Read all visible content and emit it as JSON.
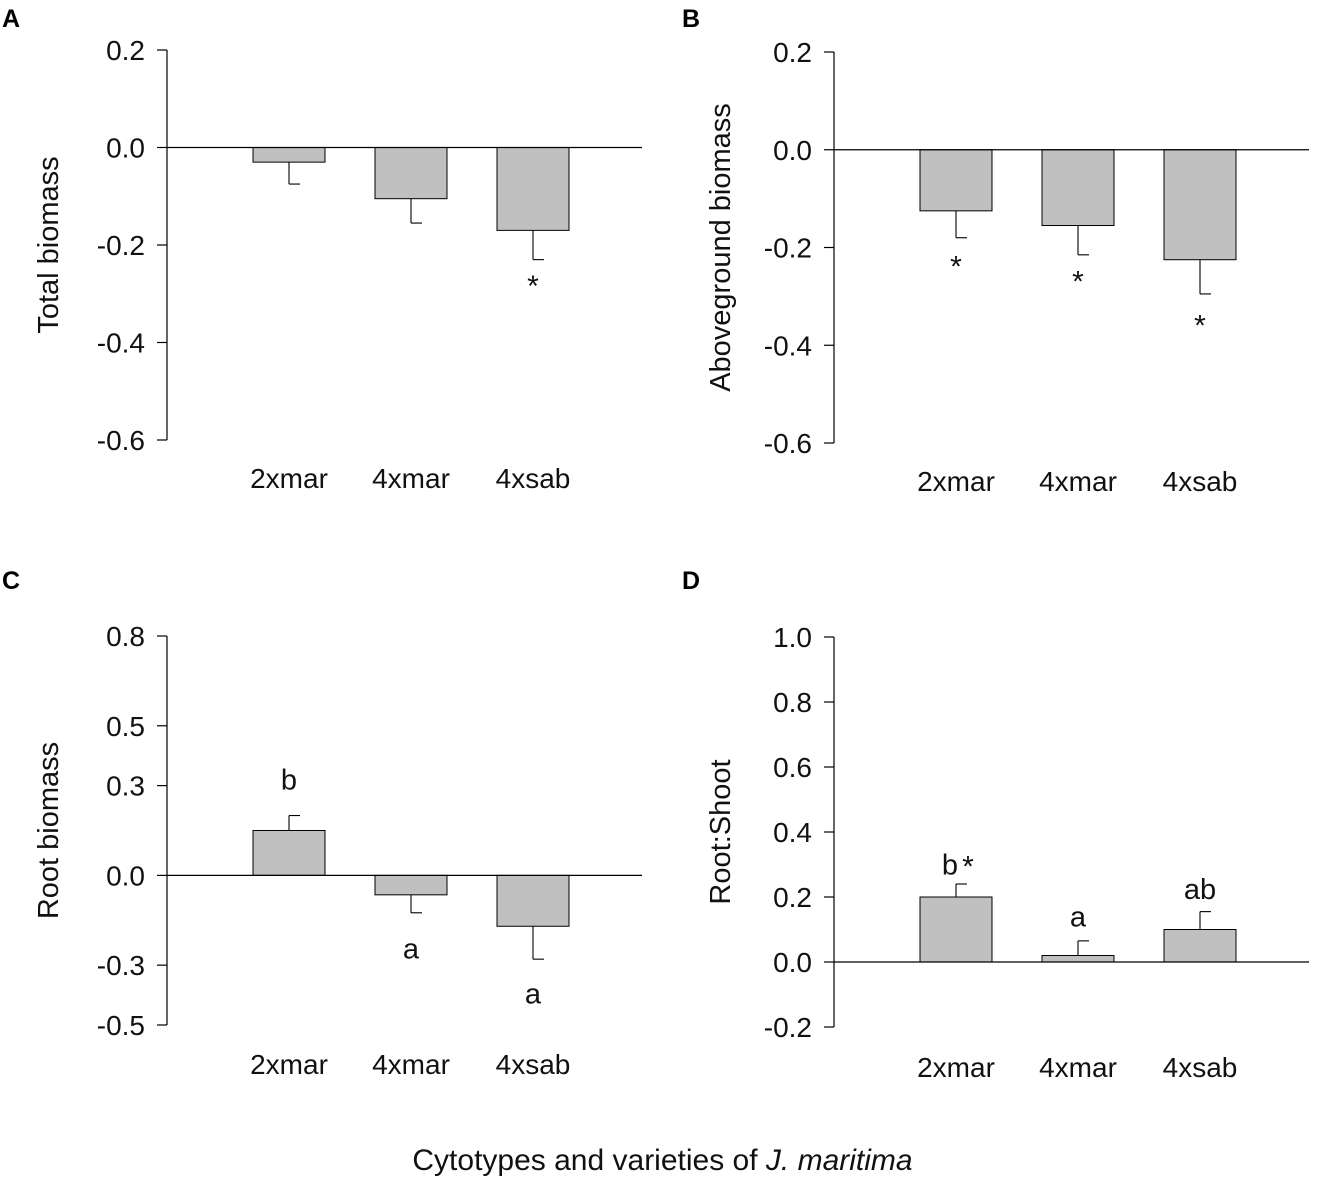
{
  "figure": {
    "caption_prefix": "Cytotypes and varieties of ",
    "caption_species": "J. maritima",
    "bar_color": "#c0c0c0",
    "axis_color": "#000000"
  },
  "chart_data": [
    {
      "panel": "A",
      "type": "bar",
      "ylabel": "Total biomass",
      "categories": [
        "2xmar",
        "4xmar",
        "4xsab"
      ],
      "values": [
        -0.03,
        -0.105,
        -0.17
      ],
      "errors": [
        0.045,
        0.05,
        0.06
      ],
      "error_direction": "down",
      "ylim": [
        -0.6,
        0.2
      ],
      "yticks": [
        0.2,
        0.0,
        -0.2,
        -0.4,
        -0.6
      ],
      "ytick_labels": [
        "0.2",
        "0.0",
        "-0.2",
        "-0.4",
        "-0.6"
      ],
      "annotations": [
        {
          "category": "4xsab",
          "text": "*",
          "value": -0.28
        }
      ]
    },
    {
      "panel": "B",
      "type": "bar",
      "ylabel": "Aboveground biomass",
      "categories": [
        "2xmar",
        "4xmar",
        "4xsab"
      ],
      "values": [
        -0.125,
        -0.155,
        -0.225
      ],
      "errors": [
        0.055,
        0.06,
        0.07
      ],
      "error_direction": "down",
      "ylim": [
        -0.6,
        0.2
      ],
      "yticks": [
        0.2,
        0.0,
        -0.2,
        -0.4,
        -0.6
      ],
      "ytick_labels": [
        "0.2",
        "0.0",
        "-0.2",
        "-0.4",
        "-0.6"
      ],
      "annotations": [
        {
          "category": "2xmar",
          "text": "*",
          "value": -0.235
        },
        {
          "category": "4xmar",
          "text": "*",
          "value": -0.265
        },
        {
          "category": "4xsab",
          "text": "*",
          "value": -0.355
        }
      ]
    },
    {
      "panel": "C",
      "type": "bar",
      "ylabel": "Root biomass",
      "categories": [
        "2xmar",
        "4xmar",
        "4xsab"
      ],
      "values": [
        0.15,
        -0.065,
        -0.17
      ],
      "errors": [
        0.05,
        0.06,
        0.11
      ],
      "error_direction": "outward",
      "ylim": [
        -0.5,
        0.8
      ],
      "yticks": [
        0.8,
        0.5,
        0.3,
        0.0,
        -0.3,
        -0.5
      ],
      "ytick_labels": [
        "0.8",
        "0.5",
        "0.3",
        "0.0",
        "-0.3",
        "-0.5"
      ],
      "annotations": [
        {
          "category": "2xmar",
          "text": "b",
          "value": 0.32
        },
        {
          "category": "4xmar",
          "text": "a",
          "value": -0.245
        },
        {
          "category": "4xsab",
          "text": "a",
          "value": -0.395
        }
      ]
    },
    {
      "panel": "D",
      "type": "bar",
      "ylabel": "Root:Shoot",
      "categories": [
        "2xmar",
        "4xmar",
        "4xsab"
      ],
      "values": [
        0.2,
        0.02,
        0.1
      ],
      "errors": [
        0.04,
        0.045,
        0.055
      ],
      "error_direction": "up",
      "ylim": [
        -0.2,
        1.0
      ],
      "yticks": [
        1.0,
        0.8,
        0.6,
        0.4,
        0.2,
        0.0,
        -0.2
      ],
      "ytick_labels": [
        "1.0",
        "0.8",
        "0.6",
        "0.4",
        "0.2",
        "0.0",
        "-0.2"
      ],
      "annotations": [
        {
          "category": "2xmar",
          "text": "b",
          "value": 0.3,
          "dx": -6
        },
        {
          "category": "2xmar",
          "text": "*",
          "value": 0.3,
          "dx": 12,
          "star": true
        },
        {
          "category": "4xmar",
          "text": "a",
          "value": 0.14
        },
        {
          "category": "4xsab",
          "text": "ab",
          "value": 0.225
        }
      ]
    }
  ]
}
